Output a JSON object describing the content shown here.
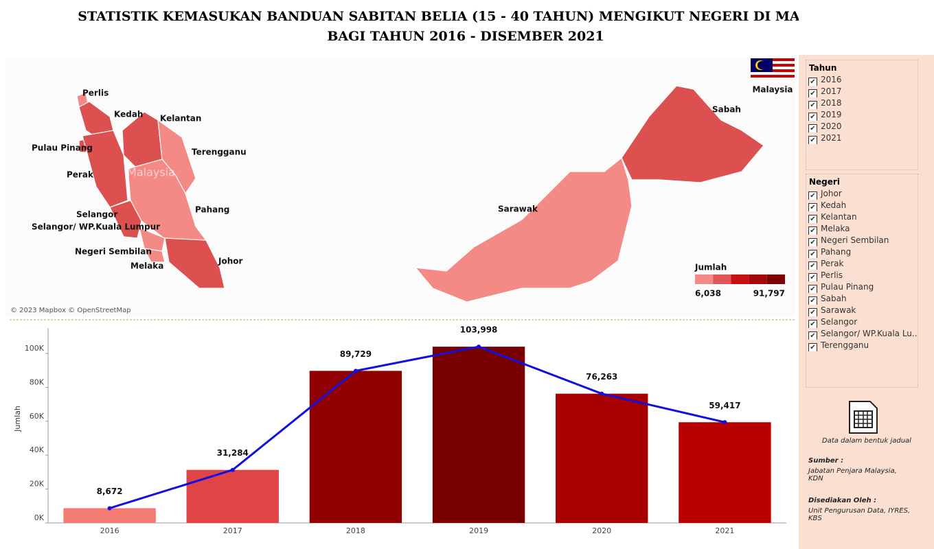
{
  "header": {
    "title": [
      "STATISTIK KEMASUKAN BANDUAN SABITAN BELIA (15 - 40 TAHUN) MENGIKUT NEGERI DI MALAYSIA",
      "BAGI TAHUN 2016 - DISEMBER 2021"
    ]
  },
  "map": {
    "labels": [
      "Perlis",
      "Kedah",
      "Kelantan",
      "Pulau Pinang",
      "Terengganu",
      "Perak",
      "Pahang",
      "Selangor",
      "Selangor/ WP.Kuala Lumpur",
      "Negeri Sembilan",
      "Melaka",
      "Johor",
      "Sarawak",
      "Sabah"
    ],
    "watermark": "Malaysia",
    "flag_label": "Malaysia",
    "attribution": "© 2023 Mapbox © OpenStreetMap",
    "legend": {
      "title": "Jumlah",
      "min_label": "6,038",
      "max_label": "91,797",
      "colors": [
        "#f48a86",
        "#e05555",
        "#c81010",
        "#a30808",
        "#7d0000"
      ]
    }
  },
  "chart_data": {
    "type": "bar",
    "categories": [
      "2016",
      "2017",
      "2018",
      "2019",
      "2020",
      "2021"
    ],
    "values": [
      8672,
      31284,
      89729,
      103998,
      76263,
      59417
    ],
    "value_labels": [
      "8,672",
      "31,284",
      "89,729",
      "103,998",
      "76,263",
      "59,417"
    ],
    "colors": [
      "#f47a74",
      "#e04444",
      "#900000",
      "#7a0000",
      "#a80000",
      "#b80000"
    ],
    "line_color": "#1010e0",
    "y_label": "Jumlah",
    "ylim": [
      0,
      115000
    ],
    "yticks": [
      {
        "value": 0,
        "label": "0K"
      },
      {
        "value": 20000,
        "label": "20K"
      },
      {
        "value": 40000,
        "label": "40K"
      },
      {
        "value": 60000,
        "label": "60K"
      },
      {
        "value": 80000,
        "label": "80K"
      },
      {
        "value": 100000,
        "label": "100K"
      }
    ]
  },
  "filters": {
    "tahun": {
      "title": "Tahun",
      "items": [
        "2016",
        "2017",
        "2018",
        "2019",
        "2020",
        "2021"
      ]
    },
    "negeri": {
      "title": "Negeri",
      "items": [
        "Johor",
        "Kedah",
        "Kelantan",
        "Melaka",
        "Negeri Sembilan",
        "Pahang",
        "Perak",
        "Perlis",
        "Pulau Pinang",
        "Sabah",
        "Sarawak",
        "Selangor",
        "Selangor/ WP.Kuala Lu..",
        "Terengganu"
      ]
    }
  },
  "footer": {
    "table_link": "Data dalam bentuk jadual",
    "source_title": "Sumber :",
    "source": "Jabatan Penjara Malaysia, KDN",
    "prepared_title": "Disediakan Oleh :",
    "prepared": "Unit Pengurusan Data, IYRES, KBS"
  }
}
